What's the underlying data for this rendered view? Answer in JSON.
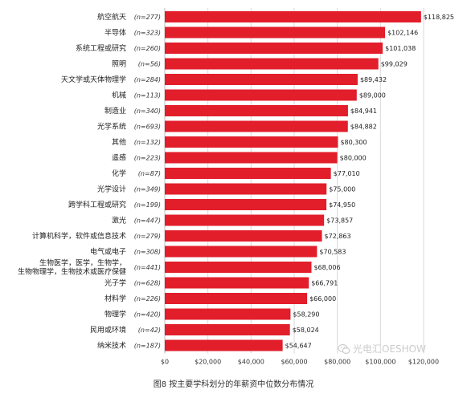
{
  "chart_data": {
    "type": "bar",
    "orientation": "horizontal",
    "categories": [
      "航空航天",
      "半导体",
      "系统工程或研究",
      "照明",
      "天文学或天体物理学",
      "机械",
      "制造业",
      "光学系统",
      "其他",
      "遥感",
      "化学",
      "光学设计",
      "跨学科工程或研究",
      "激光",
      "计算机科学，软件或信息技术",
      "电气或电子",
      "生物医学，医学，生物学，生物物理学，生物技术或医疗保健",
      "光子学",
      "材料学",
      "物理学",
      "民用或环境",
      "纳米技术"
    ],
    "category_lines": [
      [
        "航空航天"
      ],
      [
        "半导体"
      ],
      [
        "系统工程或研究"
      ],
      [
        "照明"
      ],
      [
        "天文学或天体物理学"
      ],
      [
        "机械"
      ],
      [
        "制造业"
      ],
      [
        "光学系统"
      ],
      [
        "其他"
      ],
      [
        "遥感"
      ],
      [
        "化学"
      ],
      [
        "光学设计"
      ],
      [
        "跨学科工程或研究"
      ],
      [
        "激光"
      ],
      [
        "计算机科学，软件或信息技术"
      ],
      [
        "电气或电子"
      ],
      [
        "生物医学，医学，生物学，",
        "生物物理学，生物技术或医疗保健"
      ],
      [
        "光子学"
      ],
      [
        "材料学"
      ],
      [
        "物理学"
      ],
      [
        "民用或环境"
      ],
      [
        "纳米技术"
      ]
    ],
    "counts": [
      "(n=277)",
      "(n=323)",
      "(n=260)",
      "(n=56)",
      "(n=284)",
      "(n=113)",
      "(n=340)",
      "(n=693)",
      "(n=132)",
      "(n=223)",
      "(n=87)",
      "(n=349)",
      "(n=199)",
      "(n=447)",
      "(n=279)",
      "(n=308)",
      "(n=441)",
      "(n=628)",
      "(n=226)",
      "(n=420)",
      "(n=42)",
      "(n=187)"
    ],
    "values": [
      118825,
      102146,
      101038,
      99029,
      89432,
      89000,
      84941,
      84882,
      80300,
      80000,
      77010,
      75000,
      74950,
      73857,
      72863,
      70583,
      68006,
      66791,
      66000,
      58290,
      58024,
      54647
    ],
    "value_labels": [
      "$118,825",
      "$102,146",
      "$101,038",
      "$99,029",
      "$89,432",
      "$89,000",
      "$84,941",
      "$84,882",
      "$80,300",
      "$80,000",
      "$77,010",
      "$75,000",
      "$74,950",
      "$73,857",
      "$72,863",
      "$70,583",
      "$68,006",
      "$66,791",
      "$66,000",
      "$58,290",
      "$58,024",
      "$54,647"
    ],
    "xticks": [
      0,
      20000,
      40000,
      60000,
      80000,
      100000,
      120000
    ],
    "xtick_labels": [
      "$0",
      "$20,000",
      "$40,000",
      "$60,000",
      "$80,000",
      "$100,000",
      "$120,000"
    ],
    "xlim": [
      0,
      120000
    ],
    "grid": "vertical",
    "bar_color": "#e21e2b",
    "caption": "图8 按主要学科划分的年薪资中位数分布情况"
  },
  "watermark": {
    "text": "光电汇OESHOW",
    "icon": "wechat-icon"
  }
}
